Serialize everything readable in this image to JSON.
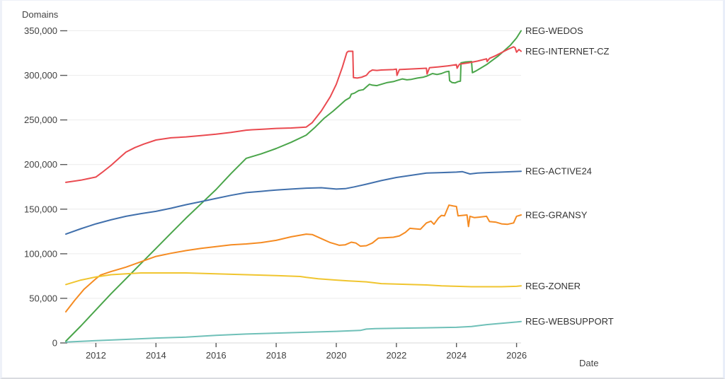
{
  "chart_data": {
    "type": "line",
    "title": "",
    "ylabel": "Domains",
    "xlabel": "Date",
    "x_range": [
      2011,
      2026.15
    ],
    "ylim": [
      0,
      350000
    ],
    "grid": "horizontal",
    "legend_position": "labels-at-line-ends",
    "x_ticks": [
      2012,
      2014,
      2016,
      2018,
      2020,
      2022,
      2024,
      2026
    ],
    "y_ticks": [
      {
        "value": 0,
        "label": "0"
      },
      {
        "value": 50000,
        "label": "50,000"
      },
      {
        "value": 100000,
        "label": "100,000"
      },
      {
        "value": 150000,
        "label": "150,000"
      },
      {
        "value": 200000,
        "label": "200,000"
      },
      {
        "value": 250000,
        "label": "250,000"
      },
      {
        "value": 300000,
        "label": "300,000"
      },
      {
        "value": 350000,
        "label": "350,000"
      }
    ],
    "series": [
      {
        "name": "REG-WEDOS",
        "color": "#4aa54a",
        "points": [
          [
            2011.0,
            2000
          ],
          [
            2011.5,
            19000
          ],
          [
            2012.0,
            37000
          ],
          [
            2012.5,
            55000
          ],
          [
            2013.0,
            72000
          ],
          [
            2013.5,
            89000
          ],
          [
            2014.0,
            106000
          ],
          [
            2014.5,
            123000
          ],
          [
            2015.0,
            140000
          ],
          [
            2015.5,
            156000
          ],
          [
            2016.0,
            172000
          ],
          [
            2016.5,
            190000
          ],
          [
            2017.0,
            207000
          ],
          [
            2017.5,
            212000
          ],
          [
            2018.0,
            218000
          ],
          [
            2018.5,
            225000
          ],
          [
            2019.0,
            233000
          ],
          [
            2019.3,
            242000
          ],
          [
            2019.6,
            252000
          ],
          [
            2019.9,
            260000
          ],
          [
            2020.1,
            266000
          ],
          [
            2020.3,
            272000
          ],
          [
            2020.45,
            275000
          ],
          [
            2020.5,
            279000
          ],
          [
            2020.6,
            280000
          ],
          [
            2020.75,
            283000
          ],
          [
            2020.9,
            284000
          ],
          [
            2021.0,
            287000
          ],
          [
            2021.1,
            290000
          ],
          [
            2021.2,
            289000
          ],
          [
            2021.35,
            288500
          ],
          [
            2021.5,
            290000
          ],
          [
            2021.7,
            292000
          ],
          [
            2021.9,
            293000
          ],
          [
            2022.0,
            294000
          ],
          [
            2022.2,
            296000
          ],
          [
            2022.35,
            295000
          ],
          [
            2022.5,
            295500
          ],
          [
            2022.7,
            297000
          ],
          [
            2022.9,
            298000
          ],
          [
            2023.0,
            299000
          ],
          [
            2023.2,
            302000
          ],
          [
            2023.35,
            301000
          ],
          [
            2023.5,
            302000
          ],
          [
            2023.65,
            304000
          ],
          [
            2023.75,
            304500
          ],
          [
            2023.77,
            294000
          ],
          [
            2023.85,
            292000
          ],
          [
            2023.95,
            291500
          ],
          [
            2024.05,
            293000
          ],
          [
            2024.13,
            293500
          ],
          [
            2024.15,
            314000
          ],
          [
            2024.3,
            315000
          ],
          [
            2024.5,
            315500
          ],
          [
            2024.53,
            303000
          ],
          [
            2024.65,
            305000
          ],
          [
            2024.8,
            308000
          ],
          [
            2025.0,
            312000
          ],
          [
            2025.2,
            317000
          ],
          [
            2025.4,
            322000
          ],
          [
            2025.6,
            328000
          ],
          [
            2025.8,
            334000
          ],
          [
            2026.0,
            342000
          ],
          [
            2026.15,
            350000
          ]
        ]
      },
      {
        "name": "REG-INTERNET-CZ",
        "color": "#ea4a50",
        "points": [
          [
            2011.0,
            180000
          ],
          [
            2011.5,
            182500
          ],
          [
            2012.0,
            186000
          ],
          [
            2012.2,
            191000
          ],
          [
            2012.5,
            199000
          ],
          [
            2012.8,
            208000
          ],
          [
            2013.0,
            214000
          ],
          [
            2013.3,
            219000
          ],
          [
            2013.6,
            223000
          ],
          [
            2014.0,
            227500
          ],
          [
            2014.5,
            230000
          ],
          [
            2015.0,
            231000
          ],
          [
            2015.5,
            232500
          ],
          [
            2016.0,
            234000
          ],
          [
            2016.5,
            236000
          ],
          [
            2017.0,
            238500
          ],
          [
            2017.2,
            239000
          ],
          [
            2017.5,
            239500
          ],
          [
            2018.0,
            240500
          ],
          [
            2018.5,
            241000
          ],
          [
            2019.0,
            242000
          ],
          [
            2019.2,
            247000
          ],
          [
            2019.5,
            260000
          ],
          [
            2019.8,
            276000
          ],
          [
            2020.0,
            290000
          ],
          [
            2020.2,
            309000
          ],
          [
            2020.35,
            325500
          ],
          [
            2020.4,
            327000
          ],
          [
            2020.55,
            327000
          ],
          [
            2020.57,
            297500
          ],
          [
            2020.7,
            297000
          ],
          [
            2020.85,
            298000
          ],
          [
            2021.0,
            300000
          ],
          [
            2021.1,
            304000
          ],
          [
            2021.2,
            306000
          ],
          [
            2021.35,
            305500
          ],
          [
            2021.5,
            306000
          ],
          [
            2021.9,
            306500
          ],
          [
            2022.0,
            307000
          ],
          [
            2022.02,
            300000
          ],
          [
            2022.1,
            306500
          ],
          [
            2022.4,
            307000
          ],
          [
            2022.7,
            307500
          ],
          [
            2023.0,
            308000
          ],
          [
            2023.02,
            301500
          ],
          [
            2023.1,
            308500
          ],
          [
            2023.4,
            309500
          ],
          [
            2023.7,
            310500
          ],
          [
            2024.0,
            312000
          ],
          [
            2024.02,
            308000
          ],
          [
            2024.1,
            312500
          ],
          [
            2024.4,
            314000
          ],
          [
            2024.7,
            316000
          ],
          [
            2025.0,
            318500
          ],
          [
            2025.02,
            315500
          ],
          [
            2025.1,
            319000
          ],
          [
            2025.3,
            322000
          ],
          [
            2025.5,
            325500
          ],
          [
            2025.7,
            329000
          ],
          [
            2025.9,
            332000
          ],
          [
            2025.95,
            331000
          ],
          [
            2026.0,
            326000
          ],
          [
            2026.08,
            329000
          ],
          [
            2026.15,
            327000
          ]
        ]
      },
      {
        "name": "REG-ACTIVE24",
        "color": "#4170ac",
        "points": [
          [
            2011.0,
            122000
          ],
          [
            2011.5,
            128000
          ],
          [
            2012.0,
            133500
          ],
          [
            2012.5,
            138000
          ],
          [
            2013.0,
            142000
          ],
          [
            2013.5,
            145000
          ],
          [
            2014.0,
            147500
          ],
          [
            2014.5,
            151000
          ],
          [
            2015.0,
            155000
          ],
          [
            2015.5,
            158500
          ],
          [
            2016.0,
            162000
          ],
          [
            2016.5,
            165500
          ],
          [
            2017.0,
            168500
          ],
          [
            2017.5,
            170000
          ],
          [
            2018.0,
            171500
          ],
          [
            2018.5,
            172500
          ],
          [
            2019.0,
            173500
          ],
          [
            2019.5,
            174000
          ],
          [
            2020.0,
            172500
          ],
          [
            2020.3,
            173000
          ],
          [
            2020.6,
            175000
          ],
          [
            2021.0,
            178000
          ],
          [
            2021.5,
            182000
          ],
          [
            2022.0,
            185500
          ],
          [
            2022.5,
            188000
          ],
          [
            2023.0,
            190500
          ],
          [
            2023.5,
            191000
          ],
          [
            2024.0,
            191500
          ],
          [
            2024.2,
            192000
          ],
          [
            2024.45,
            189500
          ],
          [
            2024.7,
            190500
          ],
          [
            2025.0,
            191000
          ],
          [
            2025.5,
            191500
          ],
          [
            2026.15,
            192500
          ]
        ]
      },
      {
        "name": "REG-GRANSY",
        "color": "#f58b22",
        "points": [
          [
            2011.0,
            35000
          ],
          [
            2011.3,
            48000
          ],
          [
            2011.6,
            60000
          ],
          [
            2012.0,
            72000
          ],
          [
            2012.15,
            76000
          ],
          [
            2012.5,
            80000
          ],
          [
            2013.0,
            85000
          ],
          [
            2013.5,
            91000
          ],
          [
            2014.0,
            97000
          ],
          [
            2014.5,
            100500
          ],
          [
            2015.0,
            103500
          ],
          [
            2015.5,
            106000
          ],
          [
            2016.0,
            108000
          ],
          [
            2016.5,
            110000
          ],
          [
            2017.0,
            111000
          ],
          [
            2017.5,
            112500
          ],
          [
            2018.0,
            115000
          ],
          [
            2018.5,
            119000
          ],
          [
            2019.0,
            122000
          ],
          [
            2019.2,
            121500
          ],
          [
            2019.5,
            117000
          ],
          [
            2019.8,
            112500
          ],
          [
            2020.0,
            110500
          ],
          [
            2020.1,
            109500
          ],
          [
            2020.3,
            110000
          ],
          [
            2020.5,
            113000
          ],
          [
            2020.65,
            112000
          ],
          [
            2020.8,
            108500
          ],
          [
            2021.0,
            109000
          ],
          [
            2021.2,
            112000
          ],
          [
            2021.4,
            117500
          ],
          [
            2021.6,
            118000
          ],
          [
            2021.9,
            118500
          ],
          [
            2022.1,
            120000
          ],
          [
            2022.3,
            124000
          ],
          [
            2022.45,
            128500
          ],
          [
            2022.6,
            128000
          ],
          [
            2022.8,
            127500
          ],
          [
            2023.0,
            134500
          ],
          [
            2023.15,
            136500
          ],
          [
            2023.25,
            133000
          ],
          [
            2023.4,
            140000
          ],
          [
            2023.5,
            143000
          ],
          [
            2023.6,
            142500
          ],
          [
            2023.75,
            154500
          ],
          [
            2023.9,
            153500
          ],
          [
            2024.0,
            153000
          ],
          [
            2024.05,
            142500
          ],
          [
            2024.2,
            143000
          ],
          [
            2024.35,
            143500
          ],
          [
            2024.4,
            130500
          ],
          [
            2024.45,
            142000
          ],
          [
            2024.6,
            140500
          ],
          [
            2024.75,
            141000
          ],
          [
            2025.0,
            142000
          ],
          [
            2025.1,
            136000
          ],
          [
            2025.3,
            135500
          ],
          [
            2025.5,
            133500
          ],
          [
            2025.7,
            133000
          ],
          [
            2025.9,
            134500
          ],
          [
            2026.0,
            142000
          ],
          [
            2026.15,
            143500
          ]
        ]
      },
      {
        "name": "REG-ZONER",
        "color": "#f0c52f",
        "points": [
          [
            2011.0,
            65500
          ],
          [
            2011.5,
            70500
          ],
          [
            2012.0,
            74000
          ],
          [
            2012.5,
            76500
          ],
          [
            2013.0,
            77500
          ],
          [
            2013.5,
            78500
          ],
          [
            2014.0,
            78500
          ],
          [
            2015.0,
            78500
          ],
          [
            2016.0,
            77500
          ],
          [
            2017.0,
            76500
          ],
          [
            2018.0,
            75500
          ],
          [
            2018.8,
            74500
          ],
          [
            2019.0,
            73500
          ],
          [
            2019.4,
            72000
          ],
          [
            2020.0,
            70500
          ],
          [
            2020.4,
            69500
          ],
          [
            2021.0,
            68500
          ],
          [
            2021.5,
            66500
          ],
          [
            2022.0,
            66000
          ],
          [
            2022.5,
            65500
          ],
          [
            2023.0,
            65000
          ],
          [
            2023.5,
            64000
          ],
          [
            2024.0,
            63500
          ],
          [
            2024.5,
            63000
          ],
          [
            2025.0,
            63000
          ],
          [
            2025.5,
            63000
          ],
          [
            2026.0,
            63500
          ],
          [
            2026.15,
            64000
          ]
        ]
      },
      {
        "name": "REG-WEBSUPPORT",
        "color": "#6fc0b8",
        "points": [
          [
            2011.0,
            1000
          ],
          [
            2012.0,
            2500
          ],
          [
            2013.0,
            4000
          ],
          [
            2014.0,
            5500
          ],
          [
            2015.0,
            6500
          ],
          [
            2015.5,
            7500
          ],
          [
            2016.0,
            8500
          ],
          [
            2017.0,
            10000
          ],
          [
            2018.0,
            11000
          ],
          [
            2019.0,
            12000
          ],
          [
            2020.0,
            13000
          ],
          [
            2020.8,
            14000
          ],
          [
            2021.0,
            15500
          ],
          [
            2021.3,
            16000
          ],
          [
            2022.0,
            16500
          ],
          [
            2023.0,
            17000
          ],
          [
            2024.0,
            17500
          ],
          [
            2024.5,
            18500
          ],
          [
            2025.0,
            20500
          ],
          [
            2025.5,
            22000
          ],
          [
            2026.0,
            23500
          ],
          [
            2026.15,
            24000
          ]
        ]
      }
    ]
  }
}
